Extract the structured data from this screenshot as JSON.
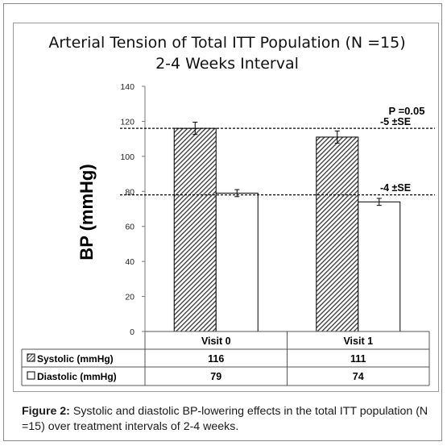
{
  "chart_data": {
    "type": "bar",
    "title_line1": "Arterial Tension of Total ITT Population (N =15)",
    "title_line2": "2-4 Weeks Interval",
    "ylabel": "BP (mmHg)",
    "ylim": [
      0,
      140
    ],
    "yticks": [
      "0",
      "20",
      "40",
      "60",
      "80",
      "100",
      "120",
      "140"
    ],
    "categories": [
      "Visit 0",
      "Visit 1"
    ],
    "series": [
      {
        "name": "Systolic (mmHg)",
        "values": [
          116,
          111
        ],
        "error": [
          3.5,
          3.5
        ],
        "fill": "hatched"
      },
      {
        "name": "Diastolic (mmHg)",
        "values": [
          79,
          74
        ],
        "error": [
          2,
          2
        ],
        "fill": "white"
      }
    ],
    "table_values": [
      [
        "116",
        "111"
      ],
      [
        "79",
        "74"
      ]
    ],
    "reference_lines": [
      116,
      78
    ],
    "annotations": {
      "p_value": "P =0.05",
      "systolic_change": "-5 ±SE",
      "diastolic_change": "-4 ±SE"
    },
    "grid": false,
    "legend": "table-below"
  },
  "caption": {
    "label": "Figure 2:",
    "text": " Systolic and diastolic BP-lowering effects in the total ITT population (N =15) over treatment intervals of 2-4 weeks."
  },
  "colors": {
    "bar_outline": "#000000",
    "hatch": "#333333",
    "frame": "#8a8a8a"
  }
}
